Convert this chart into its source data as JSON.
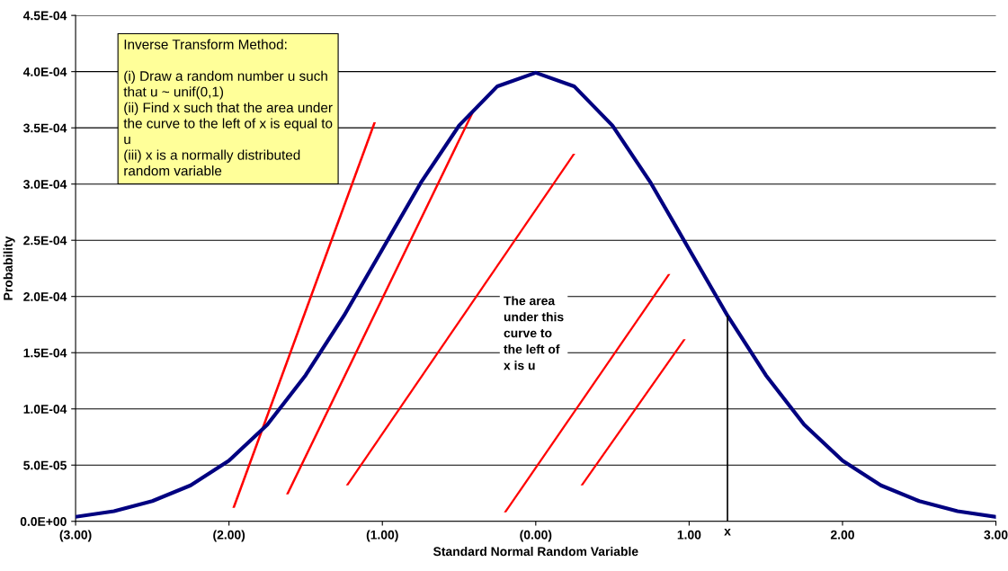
{
  "chart_data": {
    "type": "line",
    "xlabel": "Standard Normal Random Variable",
    "ylabel": "Probability",
    "x": [
      -3,
      -2.75,
      -2.5,
      -2.25,
      -2,
      -1.75,
      -1.5,
      -1.25,
      -1,
      -0.75,
      -0.5,
      -0.25,
      0,
      0.25,
      0.5,
      0.75,
      1,
      1.25,
      1.5,
      1.75,
      2,
      2.25,
      2.5,
      2.75,
      3
    ],
    "series": [
      {
        "color": "#000080",
        "values": [
          4e-06,
          9e-06,
          1.8e-05,
          3.2e-05,
          5.4e-05,
          8.6e-05,
          0.00013,
          0.000183,
          0.000242,
          0.000301,
          0.000352,
          0.000387,
          0.000399,
          0.000387,
          0.000352,
          0.000301,
          0.000242,
          0.000183,
          0.00013,
          8.6e-05,
          5.4e-05,
          3.2e-05,
          1.8e-05,
          9e-06,
          4e-06
        ]
      }
    ],
    "xlim": [
      -3,
      3
    ],
    "xticks": [
      {
        "value": -3,
        "label": "(3.00)"
      },
      {
        "value": -2,
        "label": "(2.00)"
      },
      {
        "value": -1,
        "label": "(1.00)"
      },
      {
        "value": 0,
        "label": "(0.00)"
      },
      {
        "value": 1,
        "label": "1.00"
      },
      {
        "value": 2,
        "label": "2.00"
      },
      {
        "value": 3,
        "label": "3.00"
      }
    ],
    "ylim": [
      0,
      0.00045
    ],
    "yticks": [
      {
        "value": 0,
        "label": "0.0E+00"
      },
      {
        "value": 5e-05,
        "label": "5.0E-05"
      },
      {
        "value": 0.0001,
        "label": "1.0E-04"
      },
      {
        "value": 0.00015,
        "label": "1.5E-04"
      },
      {
        "value": 0.0002,
        "label": "2.0E-04"
      },
      {
        "value": 0.00025,
        "label": "2.5E-04"
      },
      {
        "value": 0.0003,
        "label": "3.0E-04"
      },
      {
        "value": 0.00035,
        "label": "3.5E-04"
      },
      {
        "value": 0.0004,
        "label": "4.0E-04"
      },
      {
        "value": 0.00045,
        "label": "4.5E-04"
      }
    ],
    "grid": "y",
    "marker": "none",
    "line_style": "solid",
    "ref_lines": [
      {
        "axis": "x",
        "value": 1.25,
        "label": "x",
        "color": "#000000"
      }
    ],
    "annotations": [
      "Inverse Transform Method:\n\n(i) Draw a random number u such\nthat u ~ unif(0,1)\n(ii) Find x such that the area under\nthe curve to the left of x is equal to\nu\n(iii) x is a normally distributed\nrandom variable",
      "The area\nunder this\ncurve to\nthe left of\nx is u"
    ]
  }
}
